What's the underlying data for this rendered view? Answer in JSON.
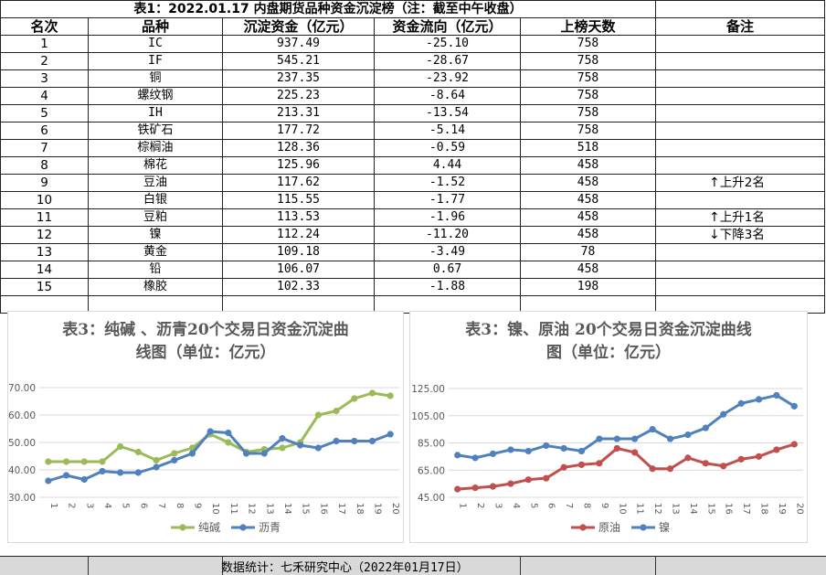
{
  "table": {
    "title": "表1：2022.01.17 内盘期货品种资金沉淀榜（注：截至中午收盘）",
    "headers": [
      "名次",
      "品种",
      "沉淀资金（亿元）",
      "资金流向（亿元）",
      "上榜天数",
      "备注"
    ],
    "rows": [
      {
        "rank": "1",
        "name": "IC",
        "fund": "937.49",
        "flow": "-25.10",
        "days": "758",
        "note": ""
      },
      {
        "rank": "2",
        "name": "IF",
        "fund": "545.21",
        "flow": "-28.67",
        "days": "758",
        "note": ""
      },
      {
        "rank": "3",
        "name": "铜",
        "fund": "237.35",
        "flow": "-23.92",
        "days": "758",
        "note": ""
      },
      {
        "rank": "4",
        "name": "螺纹钢",
        "fund": "225.23",
        "flow": "-8.64",
        "days": "758",
        "note": ""
      },
      {
        "rank": "5",
        "name": "IH",
        "fund": "213.31",
        "flow": "-13.54",
        "days": "758",
        "note": ""
      },
      {
        "rank": "6",
        "name": "铁矿石",
        "fund": "177.72",
        "flow": "-5.14",
        "days": "758",
        "note": ""
      },
      {
        "rank": "7",
        "name": "棕榈油",
        "fund": "128.36",
        "flow": "-0.59",
        "days": "518",
        "note": ""
      },
      {
        "rank": "8",
        "name": "棉花",
        "fund": "125.96",
        "flow": "4.44",
        "days": "458",
        "note": ""
      },
      {
        "rank": "9",
        "name": "豆油",
        "fund": "117.62",
        "flow": "-1.52",
        "days": "458",
        "note": "上升2名",
        "arrow": "↑"
      },
      {
        "rank": "10",
        "name": "白银",
        "fund": "115.55",
        "flow": "-1.77",
        "days": "458",
        "note": ""
      },
      {
        "rank": "11",
        "name": "豆粕",
        "fund": "113.53",
        "flow": "-1.96",
        "days": "458",
        "note": "上升1名",
        "arrow": "↑"
      },
      {
        "rank": "12",
        "name": "镍",
        "fund": "112.24",
        "flow": "-11.20",
        "days": "458",
        "note": "下降3名",
        "arrow": "↓"
      },
      {
        "rank": "13",
        "name": "黄金",
        "fund": "109.18",
        "flow": "-3.49",
        "days": "78",
        "note": ""
      },
      {
        "rank": "14",
        "name": "铅",
        "fund": "106.07",
        "flow": "0.67",
        "days": "458",
        "note": ""
      },
      {
        "rank": "15",
        "name": "橡胶",
        "fund": "102.33",
        "flow": "-1.88",
        "days": "198",
        "note": ""
      }
    ]
  },
  "footer": {
    "text": "数据统计：七禾研究中心（2022年01月17日）"
  },
  "chart_data": [
    {
      "type": "line",
      "title_line1": "表3：纯碱 、沥青20个交易日资金沉淀曲",
      "title_line2": "线图（单位：亿元）",
      "x": [
        "1",
        "2",
        "3",
        "4",
        "5",
        "6",
        "7",
        "8",
        "9",
        "10",
        "11",
        "12",
        "13",
        "14",
        "15",
        "16",
        "17",
        "18",
        "19",
        "20"
      ],
      "ylim": [
        30,
        70
      ],
      "yticks": [
        "30.00",
        "40.00",
        "50.00",
        "60.00",
        "70.00"
      ],
      "series": [
        {
          "name": "纯碱",
          "color": "#9bbb59",
          "values": [
            43,
            43,
            43,
            43,
            48.5,
            46.5,
            43.5,
            46,
            48,
            53,
            50,
            46.5,
            47.5,
            48,
            50,
            60,
            61.5,
            66,
            68,
            67
          ]
        },
        {
          "name": "沥青",
          "color": "#4f81bd",
          "values": [
            36,
            38,
            36.5,
            39.5,
            39,
            39,
            41,
            43.5,
            46,
            54,
            53.5,
            46,
            46,
            51.5,
            49,
            48,
            50.5,
            50.5,
            50.5,
            53
          ]
        }
      ]
    },
    {
      "type": "line",
      "title_line1": "表3：镍、原油 20个交易日资金沉淀曲线",
      "title_line2": "图（单位：亿元）",
      "x": [
        "1",
        "2",
        "3",
        "4",
        "5",
        "6",
        "7",
        "8",
        "9",
        "10",
        "11",
        "12",
        "13",
        "14",
        "15",
        "16",
        "17",
        "18",
        "19",
        "20"
      ],
      "ylim": [
        45,
        125
      ],
      "yticks": [
        "45.00",
        "65.00",
        "85.00",
        "105.00",
        "125.00"
      ],
      "series": [
        {
          "name": "原油",
          "color": "#c0504d",
          "values": [
            51,
            52,
            53,
            55,
            58,
            59,
            67,
            69,
            70,
            81,
            78,
            66,
            66,
            74,
            70,
            68,
            73,
            75,
            80,
            84
          ]
        },
        {
          "name": "镍",
          "color": "#4f81bd",
          "values": [
            76,
            74,
            77,
            80,
            79,
            83,
            81,
            79,
            88,
            88,
            88,
            95,
            88,
            91,
            96,
            106,
            114,
            117,
            120,
            112
          ]
        }
      ]
    }
  ]
}
